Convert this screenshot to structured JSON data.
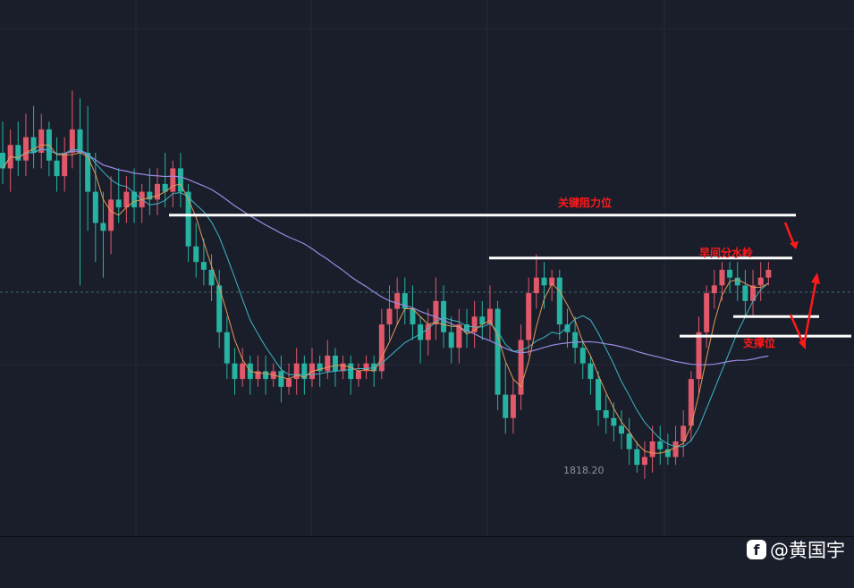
{
  "chart_data": {
    "type": "candlestick",
    "annotations": {
      "key_resistance": "关键阻力位",
      "bull_bear_line": "早间分水岭",
      "support": "支撑位"
    },
    "low_marker": "1818.20",
    "colors": {
      "background": "#1a1e2b",
      "up": "#e0586a",
      "down": "#26b3a1",
      "ma_fast": "#e39a55",
      "ma_mid": "#3fb7c6",
      "ma_slow": "#9b8ae0",
      "annotation": "#ff1a1a",
      "level_line": "#ffffff"
    },
    "levels": {
      "key_resistance": 1852.0,
      "bull_bear_line": 1846.5,
      "support_upper": 1839.0,
      "support_lower": 1836.5
    },
    "y_range": [
      1812.0,
      1875.0
    ],
    "candles": [
      [
        1860,
        1858,
        1864,
        1856
      ],
      [
        1858,
        1861,
        1863,
        1855
      ],
      [
        1861,
        1859,
        1864,
        1857
      ],
      [
        1859,
        1862,
        1865,
        1857
      ],
      [
        1862,
        1860,
        1866,
        1858
      ],
      [
        1860,
        1863,
        1865,
        1858
      ],
      [
        1863,
        1859,
        1864,
        1857
      ],
      [
        1859,
        1857,
        1862,
        1855
      ],
      [
        1857,
        1860,
        1862,
        1855
      ],
      [
        1860,
        1863,
        1868,
        1858
      ],
      [
        1863,
        1860,
        1867,
        1843
      ],
      [
        1860,
        1855,
        1866,
        1850
      ],
      [
        1855,
        1851,
        1860,
        1846
      ],
      [
        1851,
        1850,
        1855,
        1844
      ],
      [
        1850,
        1854,
        1857,
        1847
      ],
      [
        1854,
        1853,
        1858,
        1851
      ],
      [
        1853,
        1855,
        1857,
        1851
      ],
      [
        1855,
        1853,
        1858,
        1851
      ],
      [
        1853,
        1855,
        1856,
        1851
      ],
      [
        1855,
        1854,
        1858,
        1852
      ],
      [
        1854,
        1856,
        1858,
        1852
      ],
      [
        1856,
        1855,
        1860,
        1853
      ],
      [
        1855,
        1858,
        1859,
        1853
      ],
      [
        1858,
        1855,
        1860,
        1853
      ],
      [
        1855,
        1848,
        1856,
        1846
      ],
      [
        1848,
        1846,
        1851,
        1844
      ],
      [
        1846,
        1845,
        1849,
        1843
      ],
      [
        1845,
        1843,
        1847,
        1841
      ],
      [
        1843,
        1837,
        1845,
        1835
      ],
      [
        1837,
        1833,
        1839,
        1831
      ],
      [
        1833,
        1831,
        1835,
        1829
      ],
      [
        1831,
        1833,
        1835,
        1830
      ],
      [
        1833,
        1831,
        1834,
        1829
      ],
      [
        1831,
        1832,
        1834,
        1830
      ],
      [
        1832,
        1831,
        1834,
        1829
      ],
      [
        1831,
        1832,
        1833,
        1830
      ],
      [
        1832,
        1830,
        1834,
        1828
      ],
      [
        1830,
        1831,
        1833,
        1829
      ],
      [
        1831,
        1833,
        1835,
        1829
      ],
      [
        1833,
        1831,
        1834,
        1829
      ],
      [
        1831,
        1833,
        1835,
        1830
      ],
      [
        1833,
        1832,
        1834,
        1830
      ],
      [
        1832,
        1834,
        1836,
        1831
      ],
      [
        1834,
        1832,
        1835,
        1830
      ],
      [
        1832,
        1833,
        1834,
        1831
      ],
      [
        1833,
        1831,
        1834,
        1829
      ],
      [
        1831,
        1832,
        1833,
        1830
      ],
      [
        1832,
        1833,
        1834,
        1831
      ],
      [
        1833,
        1832,
        1834,
        1830
      ],
      [
        1832,
        1838,
        1840,
        1831
      ],
      [
        1838,
        1840,
        1843,
        1836
      ],
      [
        1840,
        1842,
        1844,
        1838
      ],
      [
        1842,
        1840,
        1844,
        1838
      ],
      [
        1840,
        1838,
        1843,
        1836
      ],
      [
        1838,
        1836,
        1839,
        1833
      ],
      [
        1836,
        1838,
        1840,
        1834
      ],
      [
        1838,
        1841,
        1844,
        1836
      ],
      [
        1841,
        1837,
        1843,
        1835
      ],
      [
        1837,
        1835,
        1839,
        1833
      ],
      [
        1835,
        1838,
        1840,
        1833
      ],
      [
        1838,
        1837,
        1840,
        1835
      ],
      [
        1837,
        1839,
        1841,
        1835
      ],
      [
        1839,
        1838,
        1841,
        1836
      ],
      [
        1838,
        1840,
        1843,
        1836
      ],
      [
        1840,
        1829,
        1841,
        1827
      ],
      [
        1829,
        1826,
        1833,
        1824
      ],
      [
        1826,
        1829,
        1831,
        1824
      ],
      [
        1829,
        1836,
        1838,
        1827
      ],
      [
        1836,
        1842,
        1844,
        1834
      ],
      [
        1842,
        1844,
        1847,
        1840
      ],
      [
        1844,
        1843,
        1846,
        1840
      ],
      [
        1843,
        1844,
        1845,
        1841
      ],
      [
        1844,
        1838,
        1845,
        1836
      ],
      [
        1838,
        1837,
        1840,
        1835
      ],
      [
        1837,
        1835,
        1839,
        1833
      ],
      [
        1835,
        1833,
        1836,
        1831
      ],
      [
        1833,
        1831,
        1834,
        1829
      ],
      [
        1831,
        1827,
        1832,
        1825
      ],
      [
        1827,
        1826,
        1829,
        1824
      ],
      [
        1826,
        1825,
        1828,
        1823
      ],
      [
        1825,
        1824,
        1827,
        1822
      ],
      [
        1824,
        1822,
        1826,
        1820
      ],
      [
        1822,
        1820,
        1823,
        1819
      ],
      [
        1820,
        1821,
        1823,
        1818.2
      ],
      [
        1821,
        1823,
        1825,
        1819
      ],
      [
        1823,
        1822,
        1825,
        1820
      ],
      [
        1822,
        1821,
        1824,
        1820
      ],
      [
        1821,
        1823,
        1825,
        1820
      ],
      [
        1823,
        1825,
        1827,
        1821
      ],
      [
        1825,
        1831,
        1832,
        1823
      ],
      [
        1831,
        1837,
        1839,
        1829
      ],
      [
        1837,
        1842,
        1843,
        1835
      ],
      [
        1842,
        1843,
        1845,
        1840
      ],
      [
        1843,
        1845,
        1846,
        1841
      ],
      [
        1845,
        1844,
        1846,
        1842
      ],
      [
        1844,
        1843,
        1846,
        1841
      ],
      [
        1843,
        1841,
        1845,
        1839
      ],
      [
        1841,
        1843,
        1845,
        1839
      ],
      [
        1843,
        1844,
        1846,
        1841
      ],
      [
        1844,
        1845,
        1846,
        1843
      ]
    ]
  },
  "watermark": {
    "logo_glyph": "f",
    "handle": "@黄国宇"
  }
}
